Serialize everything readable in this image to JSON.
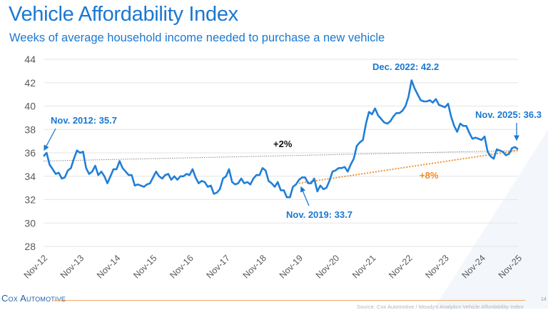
{
  "header": {
    "title": "Vehicle Affordability Index",
    "subtitle": "Weeks of average household income needed to purchase a new vehicle"
  },
  "footer": {
    "logo_text": "Cox Automotive",
    "page_number": "14",
    "source": "Source: Cox Automotive / Moody's Analytics Vehicle Affordability Index"
  },
  "colors": {
    "series": "#1f7fd9",
    "annotation": "#1a78d2",
    "trend_full": "#8a8a8a",
    "trend_recent": "#f08a24",
    "grid": "#e6e6e6"
  },
  "chart_data": {
    "type": "line",
    "title": "",
    "xlabel": "",
    "ylabel": "",
    "ylim": [
      28,
      44
    ],
    "yticks": [
      "28",
      "30",
      "32",
      "34",
      "36",
      "38",
      "40",
      "42",
      "44"
    ],
    "xticks": [
      "Nov-12",
      "Nov-13",
      "Nov-14",
      "Nov-15",
      "Nov-16",
      "Nov-17",
      "Nov-18",
      "Nov-19",
      "Nov-20",
      "Nov-21",
      "Nov-22",
      "Nov-23",
      "Nov-24",
      "Nov-25"
    ],
    "grid": true,
    "legend": "none",
    "series": [
      {
        "start": "2012-11",
        "frequency": "monthly",
        "values": [
          35.7,
          36.0,
          35.0,
          34.6,
          34.2,
          34.3,
          33.8,
          33.9,
          34.5,
          34.7,
          35.5,
          36.2,
          36.0,
          36.1,
          34.7,
          34.2,
          34.4,
          34.9,
          34.1,
          34.4,
          34.0,
          33.4,
          34.0,
          34.6,
          34.6,
          35.3,
          34.7,
          34.4,
          34.1,
          34.1,
          33.2,
          33.3,
          33.2,
          33.1,
          33.3,
          33.4,
          33.9,
          34.4,
          34.0,
          33.8,
          34.1,
          34.2,
          33.7,
          34.0,
          33.7,
          34.0,
          34.0,
          34.2,
          34.1,
          34.6,
          33.9,
          33.4,
          33.6,
          33.5,
          33.1,
          33.2,
          32.5,
          32.6,
          32.9,
          33.8,
          34.0,
          34.6,
          33.5,
          33.3,
          33.4,
          33.8,
          33.4,
          33.5,
          33.3,
          33.8,
          34.1,
          34.1,
          34.7,
          34.5,
          33.6,
          33.4,
          33.1,
          33.5,
          32.8,
          32.8,
          32.2,
          32.2,
          33.1,
          33.3,
          33.7,
          33.9,
          33.9,
          33.4,
          33.4,
          33.8,
          32.7,
          33.2,
          32.9,
          33.0,
          33.6,
          34.4,
          34.5,
          34.7,
          34.7,
          34.8,
          34.4,
          35.0,
          35.5,
          36.6,
          36.9,
          37.1,
          38.5,
          39.5,
          39.3,
          39.8,
          39.2,
          38.9,
          38.6,
          38.5,
          38.7,
          39.1,
          39.4,
          39.4,
          39.6,
          40.0,
          40.8,
          42.2,
          41.5,
          41.0,
          40.5,
          40.4,
          40.4,
          40.5,
          40.3,
          40.6,
          40.1,
          40.0,
          39.9,
          40.2,
          39.1,
          38.3,
          37.8,
          38.5,
          38.3,
          38.3,
          37.7,
          37.2,
          37.3,
          37.2,
          37.1,
          37.4,
          36.1,
          35.7,
          35.5,
          36.3,
          36.2,
          36.1,
          35.8,
          35.9,
          36.4,
          36.5,
          36.3
        ]
      }
    ],
    "trendlines": [
      {
        "label": "+2%",
        "from": [
          "2012-11",
          35.3
        ],
        "to": [
          "2025-11",
          36.2
        ]
      },
      {
        "label": "+8%",
        "from": [
          "2019-11",
          33.4
        ],
        "to": [
          "2025-11",
          36.2
        ]
      }
    ],
    "annotations": [
      {
        "text": "Nov. 2012: 35.7",
        "date": "2012-11",
        "value": 35.7
      },
      {
        "text": "Nov. 2019: 33.7",
        "date": "2019-11",
        "value": 33.7
      },
      {
        "text": "Dec. 2022: 42.2",
        "date": "2022-12",
        "value": 42.2
      },
      {
        "text": "Nov. 2025: 36.3",
        "date": "2025-11",
        "value": 36.3
      }
    ]
  }
}
